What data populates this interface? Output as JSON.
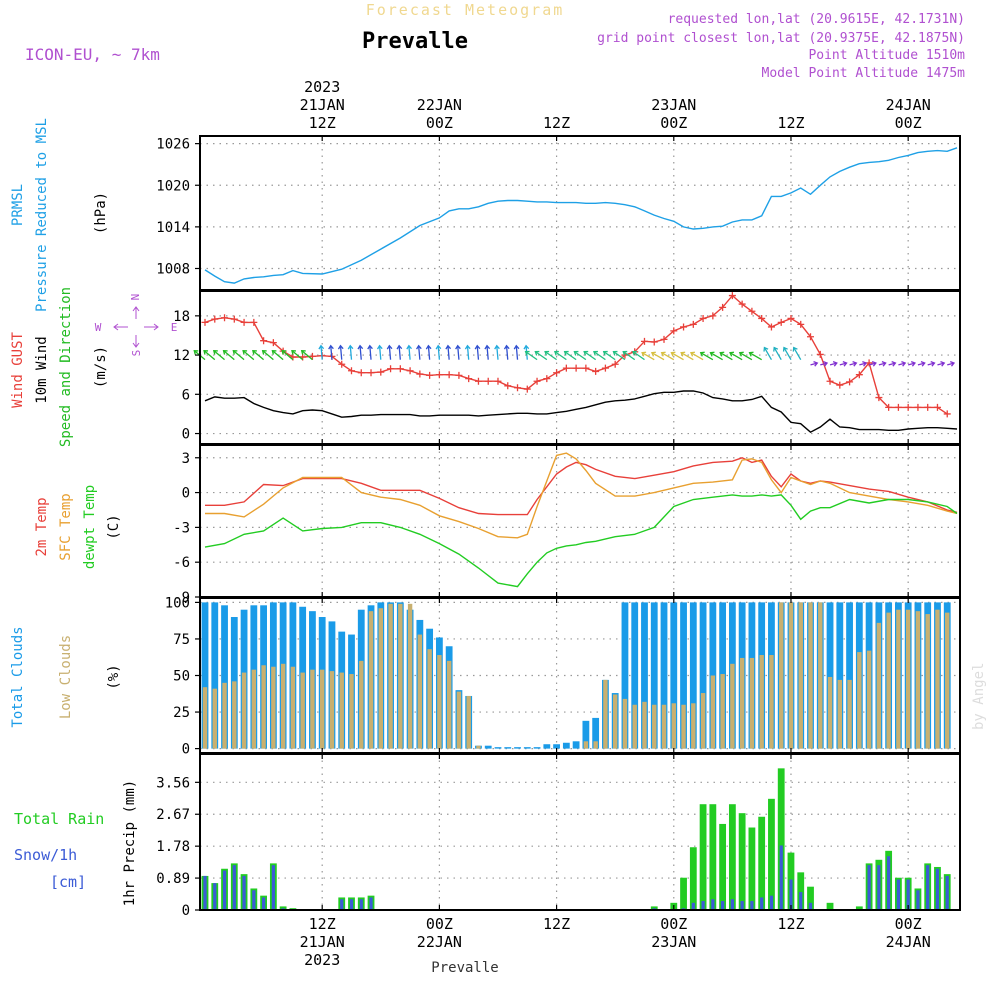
{
  "header": {
    "subtitle": "Forecast Meteogram",
    "title": "Prevalle",
    "model": "ICON-EU, ~ 7km",
    "requested": "requested lon,lat (20.9615E, 42.1731N)",
    "grid_point": "grid point closest lon,lat (20.9375E, 42.1875N)",
    "point_altitude": "Point Altitude 1510m",
    "model_altitude": "Model Point Altitude 1475m",
    "watermark": "by Angel",
    "footer": "Prevalle"
  },
  "colors": {
    "pressure": "#1ea0e6",
    "gust": "#e8403a",
    "wind": "#000000",
    "direction": "#22bb22",
    "temp": "#e8403a",
    "sfc": "#e8a030",
    "dewpt": "#22cc22",
    "total_clouds": "#1a9be8",
    "low_clouds": "#c8b070",
    "rain": "#22cc22",
    "snow": "#3b5bd6",
    "compass": "#b050d0",
    "grid": "#999999"
  },
  "time_axis": {
    "top_labels": [
      {
        "h": 12,
        "lines": [
          "2023",
          "21JAN",
          "12Z"
        ]
      },
      {
        "h": 24,
        "lines": [
          "22JAN",
          "00Z"
        ]
      },
      {
        "h": 36,
        "lines": [
          "12Z"
        ]
      },
      {
        "h": 48,
        "lines": [
          "23JAN",
          "00Z"
        ]
      },
      {
        "h": 60,
        "lines": [
          "12Z"
        ]
      },
      {
        "h": 72,
        "lines": [
          "24JAN",
          "00Z"
        ]
      }
    ],
    "bottom_labels": [
      {
        "h": 12,
        "lines": [
          "12Z",
          "21JAN",
          "2023"
        ]
      },
      {
        "h": 24,
        "lines": [
          "00Z",
          "22JAN"
        ]
      },
      {
        "h": 36,
        "lines": [
          "12Z"
        ]
      },
      {
        "h": 48,
        "lines": [
          "00Z",
          "23JAN"
        ]
      },
      {
        "h": 60,
        "lines": [
          "12Z"
        ]
      },
      {
        "h": 72,
        "lines": [
          "00Z",
          "24JAN"
        ]
      }
    ]
  },
  "panels": {
    "pressure": {
      "labels": [
        "PRMSL",
        "Pressure Reduced to MSL"
      ],
      "unit": "(hPa)",
      "ticks": [
        "1008",
        "1014",
        "1020",
        "1026"
      ]
    },
    "wind": {
      "labels": [
        "Wind GUST",
        "10m Wind",
        "Speed and Direction"
      ],
      "unit": "(m/s)",
      "ticks": [
        "0",
        "6",
        "12",
        "18"
      ],
      "compass": {
        "n": "N",
        "s": "S",
        "w": "W",
        "e": "E"
      }
    },
    "temp": {
      "labels": [
        "2m Temp",
        "SFC Temp",
        "dewpt Temp"
      ],
      "unit": "(C)",
      "ticks": [
        "-9",
        "-6",
        "-3",
        "0",
        "3"
      ]
    },
    "clouds": {
      "labels": [
        "Total Clouds",
        "Low Clouds"
      ],
      "unit": "(%)",
      "ticks": [
        "0",
        "25",
        "50",
        "75",
        "100"
      ]
    },
    "precip": {
      "labels": [
        "Total  Rain",
        "Snow/1h",
        "[cm]"
      ],
      "unit": "1hr Precip (mm)",
      "ticks": [
        "0",
        "0.89",
        "1.78",
        "2.67",
        "3.56"
      ]
    }
  },
  "chart_data": {
    "type": "line",
    "x_unit": "hours since 2023-01-21 00Z",
    "pressure_hpa": {
      "x": [
        0,
        1,
        2,
        3,
        4,
        5,
        6,
        7,
        8,
        9,
        10,
        12,
        14,
        16,
        18,
        20,
        22,
        24,
        25,
        26,
        27,
        28,
        29,
        30,
        31,
        32,
        33,
        34,
        35,
        36,
        37,
        38,
        39,
        40,
        41,
        42,
        43,
        44,
        45,
        46,
        47,
        48,
        49,
        50,
        51,
        52,
        53,
        54,
        55,
        56,
        57,
        58,
        59,
        60,
        61,
        62,
        63,
        64,
        65,
        66,
        67,
        68,
        69,
        70,
        71,
        72,
        73,
        74,
        75,
        76,
        77
      ],
      "y": [
        1007.8,
        1006.9,
        1006.1,
        1005.9,
        1006.5,
        1006.7,
        1006.8,
        1007.0,
        1007.1,
        1007.7,
        1007.3,
        1007.2,
        1007.9,
        1009.2,
        1010.8,
        1012.4,
        1014.2,
        1015.3,
        1016.3,
        1016.6,
        1016.6,
        1016.9,
        1017.4,
        1017.7,
        1017.8,
        1017.8,
        1017.7,
        1017.6,
        1017.6,
        1017.5,
        1017.5,
        1017.5,
        1017.4,
        1017.4,
        1017.5,
        1017.4,
        1017.2,
        1016.9,
        1016.3,
        1015.7,
        1015.2,
        1014.8,
        1014.0,
        1013.7,
        1013.8,
        1014.0,
        1014.1,
        1014.7,
        1015.0,
        1015.0,
        1015.6,
        1018.4,
        1018.4,
        1018.9,
        1019.6,
        1018.7,
        1020.0,
        1021.2,
        1022.0,
        1022.6,
        1023.1,
        1023.3,
        1023.4,
        1023.6,
        1024.0,
        1024.3,
        1024.7,
        1024.9,
        1025.0,
        1024.9,
        1025.4
      ]
    },
    "gust_ms": {
      "x": [
        0,
        1,
        2,
        3,
        4,
        5,
        6,
        7,
        8,
        9,
        10,
        11,
        12,
        13,
        14,
        15,
        16,
        17,
        18,
        19,
        20,
        21,
        22,
        23,
        24,
        25,
        26,
        27,
        28,
        29,
        30,
        31,
        32,
        33,
        34,
        35,
        36,
        37,
        38,
        39,
        40,
        41,
        42,
        43,
        44,
        45,
        46,
        47,
        48,
        49,
        50,
        51,
        52,
        53,
        54,
        55,
        56,
        57,
        58,
        59,
        60,
        61,
        62,
        63,
        64,
        65,
        66,
        67,
        68,
        69,
        70,
        71,
        72,
        73,
        74,
        75,
        76
      ],
      "y": [
        17.0,
        17.5,
        17.7,
        17.5,
        17.0,
        17.0,
        14.2,
        13.9,
        12.6,
        11.7,
        11.7,
        11.8,
        11.9,
        11.8,
        10.6,
        9.6,
        9.3,
        9.3,
        9.4,
        9.9,
        9.9,
        9.6,
        9.1,
        8.9,
        9.0,
        9.0,
        8.9,
        8.4,
        8.0,
        8.0,
        8.0,
        7.3,
        7.0,
        6.8,
        8.0,
        8.4,
        9.3,
        10.0,
        10.0,
        10.0,
        9.5,
        10.0,
        10.6,
        12.0,
        12.5,
        14.1,
        14.0,
        14.4,
        15.7,
        16.3,
        16.7,
        17.6,
        18.0,
        19.3,
        21.1,
        19.8,
        18.7,
        17.6,
        16.3,
        17.0,
        17.6,
        16.7,
        14.8,
        12.1,
        8.0,
        7.4,
        7.9,
        9.0,
        10.8,
        5.5,
        4.0,
        4.0,
        4.0,
        4.0,
        4.0,
        4.0,
        3.0
      ]
    },
    "wind_ms": {
      "x": [
        0,
        1,
        2,
        3,
        4,
        5,
        6,
        7,
        8,
        9,
        10,
        11,
        12,
        13,
        14,
        15,
        16,
        17,
        18,
        19,
        20,
        21,
        22,
        23,
        24,
        25,
        26,
        27,
        28,
        29,
        30,
        31,
        32,
        33,
        34,
        35,
        36,
        37,
        38,
        39,
        40,
        41,
        42,
        43,
        44,
        45,
        46,
        47,
        48,
        49,
        50,
        51,
        52,
        53,
        54,
        55,
        56,
        57,
        58,
        59,
        60,
        61,
        62,
        63,
        64,
        65,
        66,
        67,
        68,
        69,
        70,
        71,
        72,
        73,
        74,
        75,
        76,
        77
      ],
      "y": [
        5.0,
        5.6,
        5.4,
        5.4,
        5.5,
        4.6,
        4.0,
        3.5,
        3.2,
        3.0,
        3.5,
        3.6,
        3.5,
        3.0,
        2.5,
        2.6,
        2.8,
        2.8,
        2.9,
        2.9,
        2.9,
        2.9,
        2.7,
        2.7,
        2.8,
        2.8,
        2.8,
        2.8,
        2.7,
        2.8,
        2.9,
        3.0,
        3.1,
        3.1,
        3.0,
        3.0,
        3.2,
        3.4,
        3.7,
        4.0,
        4.4,
        4.8,
        5.0,
        5.1,
        5.3,
        5.7,
        6.1,
        6.3,
        6.3,
        6.5,
        6.5,
        6.2,
        5.5,
        5.3,
        5.0,
        5.0,
        5.2,
        5.7,
        4.0,
        3.3,
        1.7,
        1.5,
        0.2,
        1.0,
        2.2,
        1.0,
        0.9,
        0.6,
        0.6,
        0.6,
        0.5,
        0.5,
        0.7,
        0.8,
        0.9,
        0.9,
        0.8,
        0.7
      ]
    },
    "temp_2m_c": {
      "x": [
        0,
        2,
        4,
        6,
        8,
        10,
        12,
        14,
        16,
        18,
        20,
        22,
        24,
        26,
        28,
        30,
        32,
        33,
        34,
        35,
        36,
        37,
        38,
        39,
        40,
        42,
        44,
        46,
        48,
        50,
        52,
        54,
        55,
        56,
        57,
        58,
        59,
        60,
        61,
        62,
        63,
        64,
        66,
        68,
        70,
        72,
        74,
        76,
        77
      ],
      "y": [
        -1.1,
        -1.1,
        -0.8,
        0.7,
        0.6,
        1.2,
        1.2,
        1.2,
        0.8,
        0.2,
        0.2,
        0.2,
        -0.5,
        -1.3,
        -1.8,
        -1.9,
        -1.9,
        -1.9,
        -0.6,
        0.5,
        1.6,
        2.2,
        2.6,
        2.4,
        2.0,
        1.4,
        1.2,
        1.5,
        1.8,
        2.3,
        2.6,
        2.7,
        3.0,
        2.6,
        2.8,
        1.4,
        0.5,
        1.6,
        1.0,
        0.8,
        1.0,
        0.9,
        0.6,
        0.3,
        0.1,
        -0.4,
        -0.8,
        -1.5,
        -1.7
      ]
    },
    "temp_sfc_c": {
      "x": [
        0,
        2,
        4,
        6,
        8,
        10,
        12,
        14,
        16,
        18,
        20,
        22,
        24,
        26,
        28,
        30,
        32,
        33,
        34,
        35,
        36,
        37,
        38,
        39,
        40,
        42,
        44,
        46,
        48,
        50,
        52,
        54,
        55,
        56,
        57,
        58,
        59,
        60,
        61,
        62,
        63,
        64,
        66,
        68,
        70,
        72,
        74,
        76,
        77
      ],
      "y": [
        -1.8,
        -1.8,
        -2.1,
        -1.0,
        0.4,
        1.3,
        1.3,
        1.3,
        0.0,
        -0.4,
        -0.6,
        -1.1,
        -2.0,
        -2.5,
        -3.1,
        -3.8,
        -3.9,
        -3.6,
        -1.2,
        1.0,
        3.2,
        3.4,
        2.9,
        1.9,
        0.8,
        -0.3,
        -0.3,
        0.0,
        0.4,
        0.8,
        0.9,
        1.1,
        2.8,
        2.9,
        2.6,
        1.1,
        0.0,
        1.3,
        1.0,
        0.7,
        1.0,
        0.8,
        0.0,
        -0.3,
        -0.6,
        -0.8,
        -1.1,
        -1.6,
        -1.8
      ]
    },
    "dewpt_c": {
      "x": [
        0,
        2,
        4,
        6,
        8,
        10,
        12,
        14,
        16,
        18,
        20,
        22,
        24,
        26,
        28,
        30,
        32,
        33,
        34,
        35,
        36,
        37,
        38,
        39,
        40,
        42,
        44,
        46,
        48,
        50,
        52,
        54,
        55,
        56,
        57,
        58,
        59,
        60,
        61,
        62,
        63,
        64,
        66,
        68,
        70,
        72,
        74,
        76,
        77
      ],
      "y": [
        -4.7,
        -4.4,
        -3.6,
        -3.3,
        -2.2,
        -3.3,
        -3.1,
        -3.0,
        -2.6,
        -2.6,
        -3.0,
        -3.6,
        -4.4,
        -5.3,
        -6.5,
        -7.8,
        -8.1,
        -7.0,
        -6.0,
        -5.2,
        -4.8,
        -4.6,
        -4.5,
        -4.3,
        -4.2,
        -3.8,
        -3.6,
        -3.0,
        -1.2,
        -0.6,
        -0.4,
        -0.2,
        -0.3,
        -0.3,
        -0.2,
        -0.3,
        -0.2,
        -1.1,
        -2.3,
        -1.6,
        -1.3,
        -1.3,
        -0.6,
        -0.9,
        -0.6,
        -0.6,
        -0.8,
        -1.2,
        -1.8
      ]
    },
    "clouds": {
      "hours": [
        0,
        1,
        2,
        3,
        4,
        5,
        6,
        7,
        8,
        9,
        10,
        11,
        12,
        13,
        14,
        15,
        16,
        17,
        18,
        19,
        20,
        21,
        22,
        23,
        24,
        25,
        26,
        27,
        28,
        29,
        30,
        31,
        32,
        33,
        34,
        35,
        36,
        37,
        38,
        39,
        40,
        41,
        42,
        43,
        44,
        45,
        46,
        47,
        48,
        49,
        50,
        51,
        52,
        53,
        54,
        55,
        56,
        57,
        58,
        59,
        60,
        61,
        62,
        63,
        64,
        65,
        66,
        67,
        68,
        69,
        70,
        71,
        72,
        73,
        74,
        75,
        76
      ],
      "total_pct": [
        100,
        100,
        98,
        90,
        95,
        98,
        98,
        100,
        100,
        100,
        97,
        94,
        90,
        87,
        80,
        78,
        95,
        98,
        100,
        100,
        100,
        95,
        88,
        82,
        76,
        70,
        40,
        36,
        2,
        2,
        1,
        1,
        1,
        1,
        1,
        3,
        3,
        4,
        5,
        19,
        21,
        47,
        38,
        100,
        100,
        100,
        100,
        100,
        100,
        100,
        100,
        100,
        100,
        100,
        100,
        100,
        100,
        100,
        100,
        100,
        100,
        100,
        100,
        100,
        100,
        100,
        100,
        100,
        100,
        100,
        100,
        100,
        100,
        100,
        100,
        100,
        100
      ],
      "low_pct": [
        42,
        41,
        45,
        46,
        52,
        54,
        57,
        56,
        58,
        56,
        52,
        54,
        54,
        53,
        52,
        51,
        60,
        94,
        96,
        99,
        99,
        99,
        78,
        68,
        64,
        60,
        39,
        36,
        2,
        0,
        0,
        0,
        0,
        0,
        0,
        0,
        0,
        0,
        0,
        5,
        5,
        47,
        37,
        34,
        30,
        32,
        30,
        30,
        31,
        30,
        31,
        38,
        50,
        51,
        58,
        62,
        62,
        64,
        64,
        100,
        100,
        100,
        100,
        100,
        49,
        47,
        47,
        66,
        67,
        86,
        93,
        95,
        95,
        94,
        92,
        95,
        93
      ]
    },
    "precip": {
      "hours": [
        0,
        1,
        2,
        3,
        4,
        5,
        6,
        7,
        8,
        9,
        10,
        11,
        12,
        13,
        14,
        15,
        16,
        17,
        18,
        19,
        20,
        21,
        22,
        23,
        24,
        25,
        26,
        27,
        28,
        29,
        30,
        31,
        32,
        33,
        34,
        35,
        36,
        37,
        38,
        39,
        40,
        41,
        42,
        43,
        44,
        45,
        46,
        47,
        48,
        49,
        50,
        51,
        52,
        53,
        54,
        55,
        56,
        57,
        58,
        59,
        60,
        61,
        62,
        63,
        64,
        65,
        66,
        67,
        68,
        69,
        70,
        71,
        72,
        73,
        74,
        75,
        76
      ],
      "rain_mm": [
        0.95,
        0.75,
        1.15,
        1.3,
        1.0,
        0.6,
        0.4,
        1.3,
        0.1,
        0.05,
        0,
        0,
        0,
        0,
        0.35,
        0.35,
        0.35,
        0.4,
        0,
        0,
        0,
        0,
        0,
        0,
        0,
        0,
        0,
        0,
        0,
        0,
        0,
        0,
        0,
        0,
        0,
        0,
        0,
        0,
        0,
        0,
        0,
        0,
        0,
        0,
        0,
        0,
        0.1,
        0,
        0.2,
        0.9,
        1.75,
        2.95,
        2.95,
        2.4,
        2.95,
        2.7,
        2.3,
        2.6,
        3.1,
        3.95,
        1.6,
        1.05,
        0.65,
        0,
        0.2,
        0,
        0,
        0.1,
        1.3,
        1.4,
        1.65,
        0.9,
        0.9,
        0.6,
        1.3,
        1.2,
        1.0
      ],
      "snow_cm": [
        0.95,
        0.75,
        1.1,
        1.25,
        0.95,
        0.55,
        0.35,
        1.25,
        0.05,
        0,
        0,
        0,
        0,
        0,
        0.3,
        0.3,
        0.3,
        0.35,
        0,
        0,
        0,
        0,
        0,
        0,
        0,
        0,
        0,
        0,
        0,
        0,
        0,
        0,
        0,
        0,
        0,
        0,
        0,
        0,
        0,
        0,
        0,
        0,
        0,
        0,
        0,
        0,
        0.05,
        0,
        0,
        0.05,
        0.2,
        0.25,
        0.3,
        0.25,
        0.3,
        0.25,
        0.25,
        0.35,
        0.4,
        1.8,
        0.85,
        0.5,
        0.2,
        0,
        0,
        0,
        0,
        0,
        1.25,
        1.25,
        1.5,
        0.85,
        0.85,
        0.55,
        1.25,
        1.15,
        0.95
      ]
    }
  }
}
